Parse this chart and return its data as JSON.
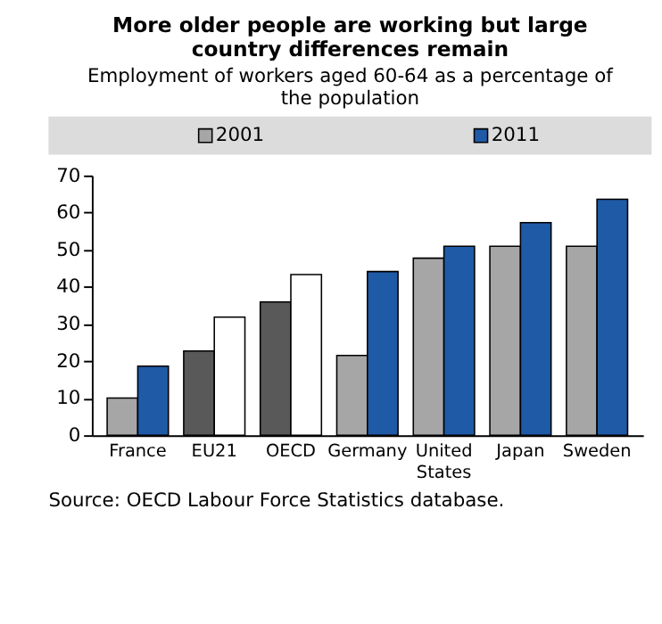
{
  "chart_data": {
    "type": "bar",
    "title": "More older people are working but large country differences remain",
    "subtitle": "Employment of workers aged 60-64 as a percentage of the population",
    "categories": [
      "France",
      "EU21",
      "OECD",
      "Germany",
      "United States",
      "Japan",
      "Sweden"
    ],
    "series": [
      {
        "name": "2001",
        "color": "#a6a6a6",
        "colors": [
          "#a6a6a6",
          "#595959",
          "#595959",
          "#a6a6a6",
          "#a6a6a6",
          "#a6a6a6",
          "#a6a6a6"
        ],
        "values": [
          10.0,
          22.7,
          35.9,
          21.5,
          47.7,
          50.9,
          50.9
        ]
      },
      {
        "name": "2011",
        "color": "#1f5aa6",
        "colors": [
          "#1f5aa6",
          "#ffffff",
          "#ffffff",
          "#1f5aa6",
          "#1f5aa6",
          "#1f5aa6",
          "#1f5aa6"
        ],
        "values": [
          18.6,
          31.8,
          43.3,
          44.1,
          50.9,
          57.3,
          63.6
        ]
      }
    ],
    "ylim": [
      0,
      70
    ],
    "yticks": [
      0,
      10,
      20,
      30,
      40,
      50,
      60,
      70
    ],
    "grid": false,
    "legend": "top",
    "annotations": [
      "Source: OECD Labour Force Statistics database."
    ]
  }
}
